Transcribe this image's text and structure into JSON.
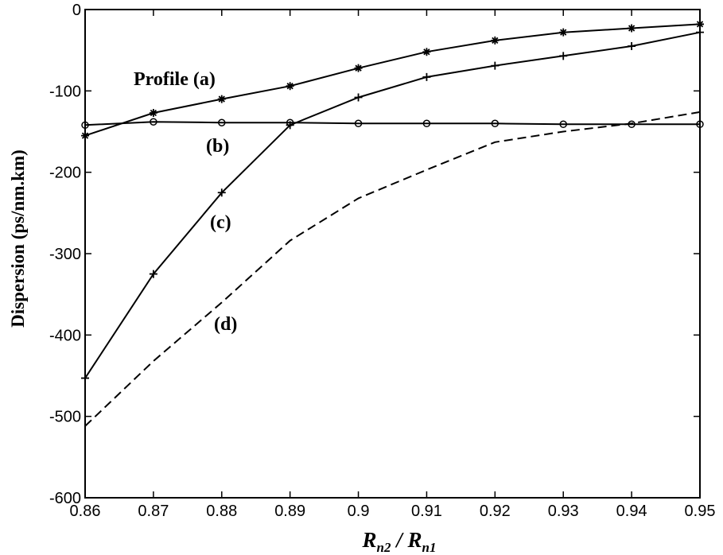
{
  "chart_data": {
    "type": "line",
    "title": "",
    "xlabel": {
      "main_1": "R",
      "sub_1": "n2",
      "sep": " / ",
      "main_2": "R",
      "sub_2": "n1"
    },
    "ylabel": "Dispersion (ps/nm.km)",
    "xlim": [
      0.86,
      0.95
    ],
    "ylim": [
      -600,
      0
    ],
    "xticks": [
      "0.86",
      "0.87",
      "0.88",
      "0.89",
      "0.9",
      "0.91",
      "0.92",
      "0.93",
      "0.94",
      "0.95"
    ],
    "yticks": [
      "0",
      "-100",
      "-200",
      "-300",
      "-400",
      "-500",
      "-600"
    ],
    "grid": false,
    "series": [
      {
        "name": "Profile (a)",
        "marker": "asterisk",
        "line": "solid",
        "x": [
          0.86,
          0.87,
          0.88,
          0.89,
          0.9,
          0.91,
          0.92,
          0.93,
          0.94,
          0.95
        ],
        "y": [
          -155,
          -127,
          -110,
          -94,
          -72,
          -52,
          -38,
          -28,
          -23,
          -18
        ]
      },
      {
        "name": "(b)",
        "marker": "circle",
        "line": "solid",
        "x": [
          0.86,
          0.87,
          0.88,
          0.89,
          0.9,
          0.91,
          0.92,
          0.93,
          0.94,
          0.95
        ],
        "y": [
          -142,
          -138,
          -139,
          -139,
          -140,
          -140,
          -140,
          -141,
          -141,
          -141
        ]
      },
      {
        "name": "(c)",
        "marker": "plus",
        "line": "solid",
        "x": [
          0.86,
          0.87,
          0.88,
          0.89,
          0.9,
          0.91,
          0.92,
          0.93,
          0.94,
          0.95
        ],
        "y": [
          -453,
          -325,
          -225,
          -142,
          -108,
          -83,
          -69,
          -57,
          -45,
          -28
        ]
      },
      {
        "name": "(d)",
        "marker": "none",
        "line": "dashed",
        "x": [
          0.86,
          0.87,
          0.88,
          0.89,
          0.9,
          0.91,
          0.92,
          0.93,
          0.94,
          0.95
        ],
        "y": [
          -512,
          -432,
          -360,
          -284,
          -232,
          -197,
          -163,
          -150,
          -140,
          -126
        ]
      }
    ],
    "annotations": [
      {
        "text": "Profile (a)",
        "series": 0
      },
      {
        "text": "(b)",
        "series": 1
      },
      {
        "text": "(c)",
        "series": 2
      },
      {
        "text": "(d)",
        "series": 3
      }
    ]
  }
}
